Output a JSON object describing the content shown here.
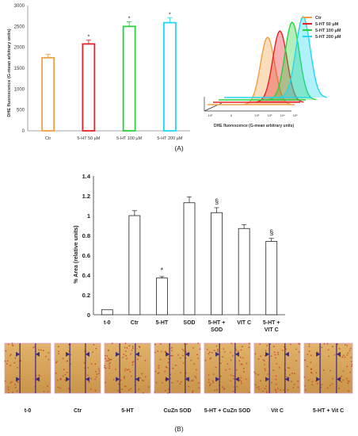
{
  "panel_labels": [
    "(A)",
    "(B)"
  ],
  "chart_data": [
    {
      "type": "bar",
      "panel": "A-left",
      "ylabel": "DHE fluorescence (G-mean arbitrary units)",
      "ylim": [
        0,
        3000
      ],
      "yticks": [
        0,
        500,
        1000,
        1500,
        2000,
        2500,
        3000
      ],
      "categories": [
        "Ctr",
        "5-HT 50 µM",
        "5-HT 100 µM",
        "5-HT 200 µM"
      ],
      "values": [
        1750,
        2080,
        2500,
        2590
      ],
      "errors": [
        80,
        90,
        110,
        120
      ],
      "significance": [
        "",
        "*",
        "*",
        "*"
      ],
      "bar_colors": [
        "#f0a040",
        "#e8202a",
        "#28d23c",
        "#20d8f0"
      ],
      "bar_fill": "open",
      "grid": false
    },
    {
      "type": "area",
      "panel": "A-right",
      "xlabel": "DHE fluorescence (G-mean arbitrary units)",
      "xticks": [
        "-10²",
        "0",
        "10²",
        "10³",
        "10⁴",
        "10⁵"
      ],
      "legend": [
        "Ctr",
        "5-HT 50 μM",
        "5-HT 100 μM",
        "5-HT 200 μM"
      ],
      "legend_position": "top-right",
      "series_colors": [
        "#f0a040",
        "#e8202a",
        "#28d23c",
        "#20d8f0"
      ],
      "peak_positions_log10": [
        2.7,
        3.2,
        3.7,
        4.1
      ]
    },
    {
      "type": "bar",
      "panel": "B",
      "ylabel": "% Area (relative units)",
      "ylim": [
        0,
        1.4
      ],
      "yticks": [
        "0",
        "0.2",
        "0.4",
        "0.6",
        "0.8",
        "1",
        "1.2",
        "1.4"
      ],
      "categories": [
        "t-0",
        "Ctr",
        "5-HT",
        "SOD",
        "5-HT + SOD",
        "VIT C",
        "5-HT + VIT C"
      ],
      "values": [
        0.05,
        1.0,
        0.37,
        1.13,
        1.03,
        0.87,
        0.74
      ],
      "errors": [
        0.0,
        0.05,
        0.015,
        0.06,
        0.05,
        0.04,
        0.03
      ],
      "significance": [
        "",
        "",
        "*",
        "",
        "§",
        "",
        "§"
      ],
      "bar_fill": "open",
      "grid": false
    }
  ],
  "micrographs": {
    "labels": [
      "t-0",
      "Ctr",
      "5-HT",
      "CuZn SOD",
      "5-HT + CuZn SOD",
      "Vit C",
      "5-HT + Vit C"
    ]
  }
}
